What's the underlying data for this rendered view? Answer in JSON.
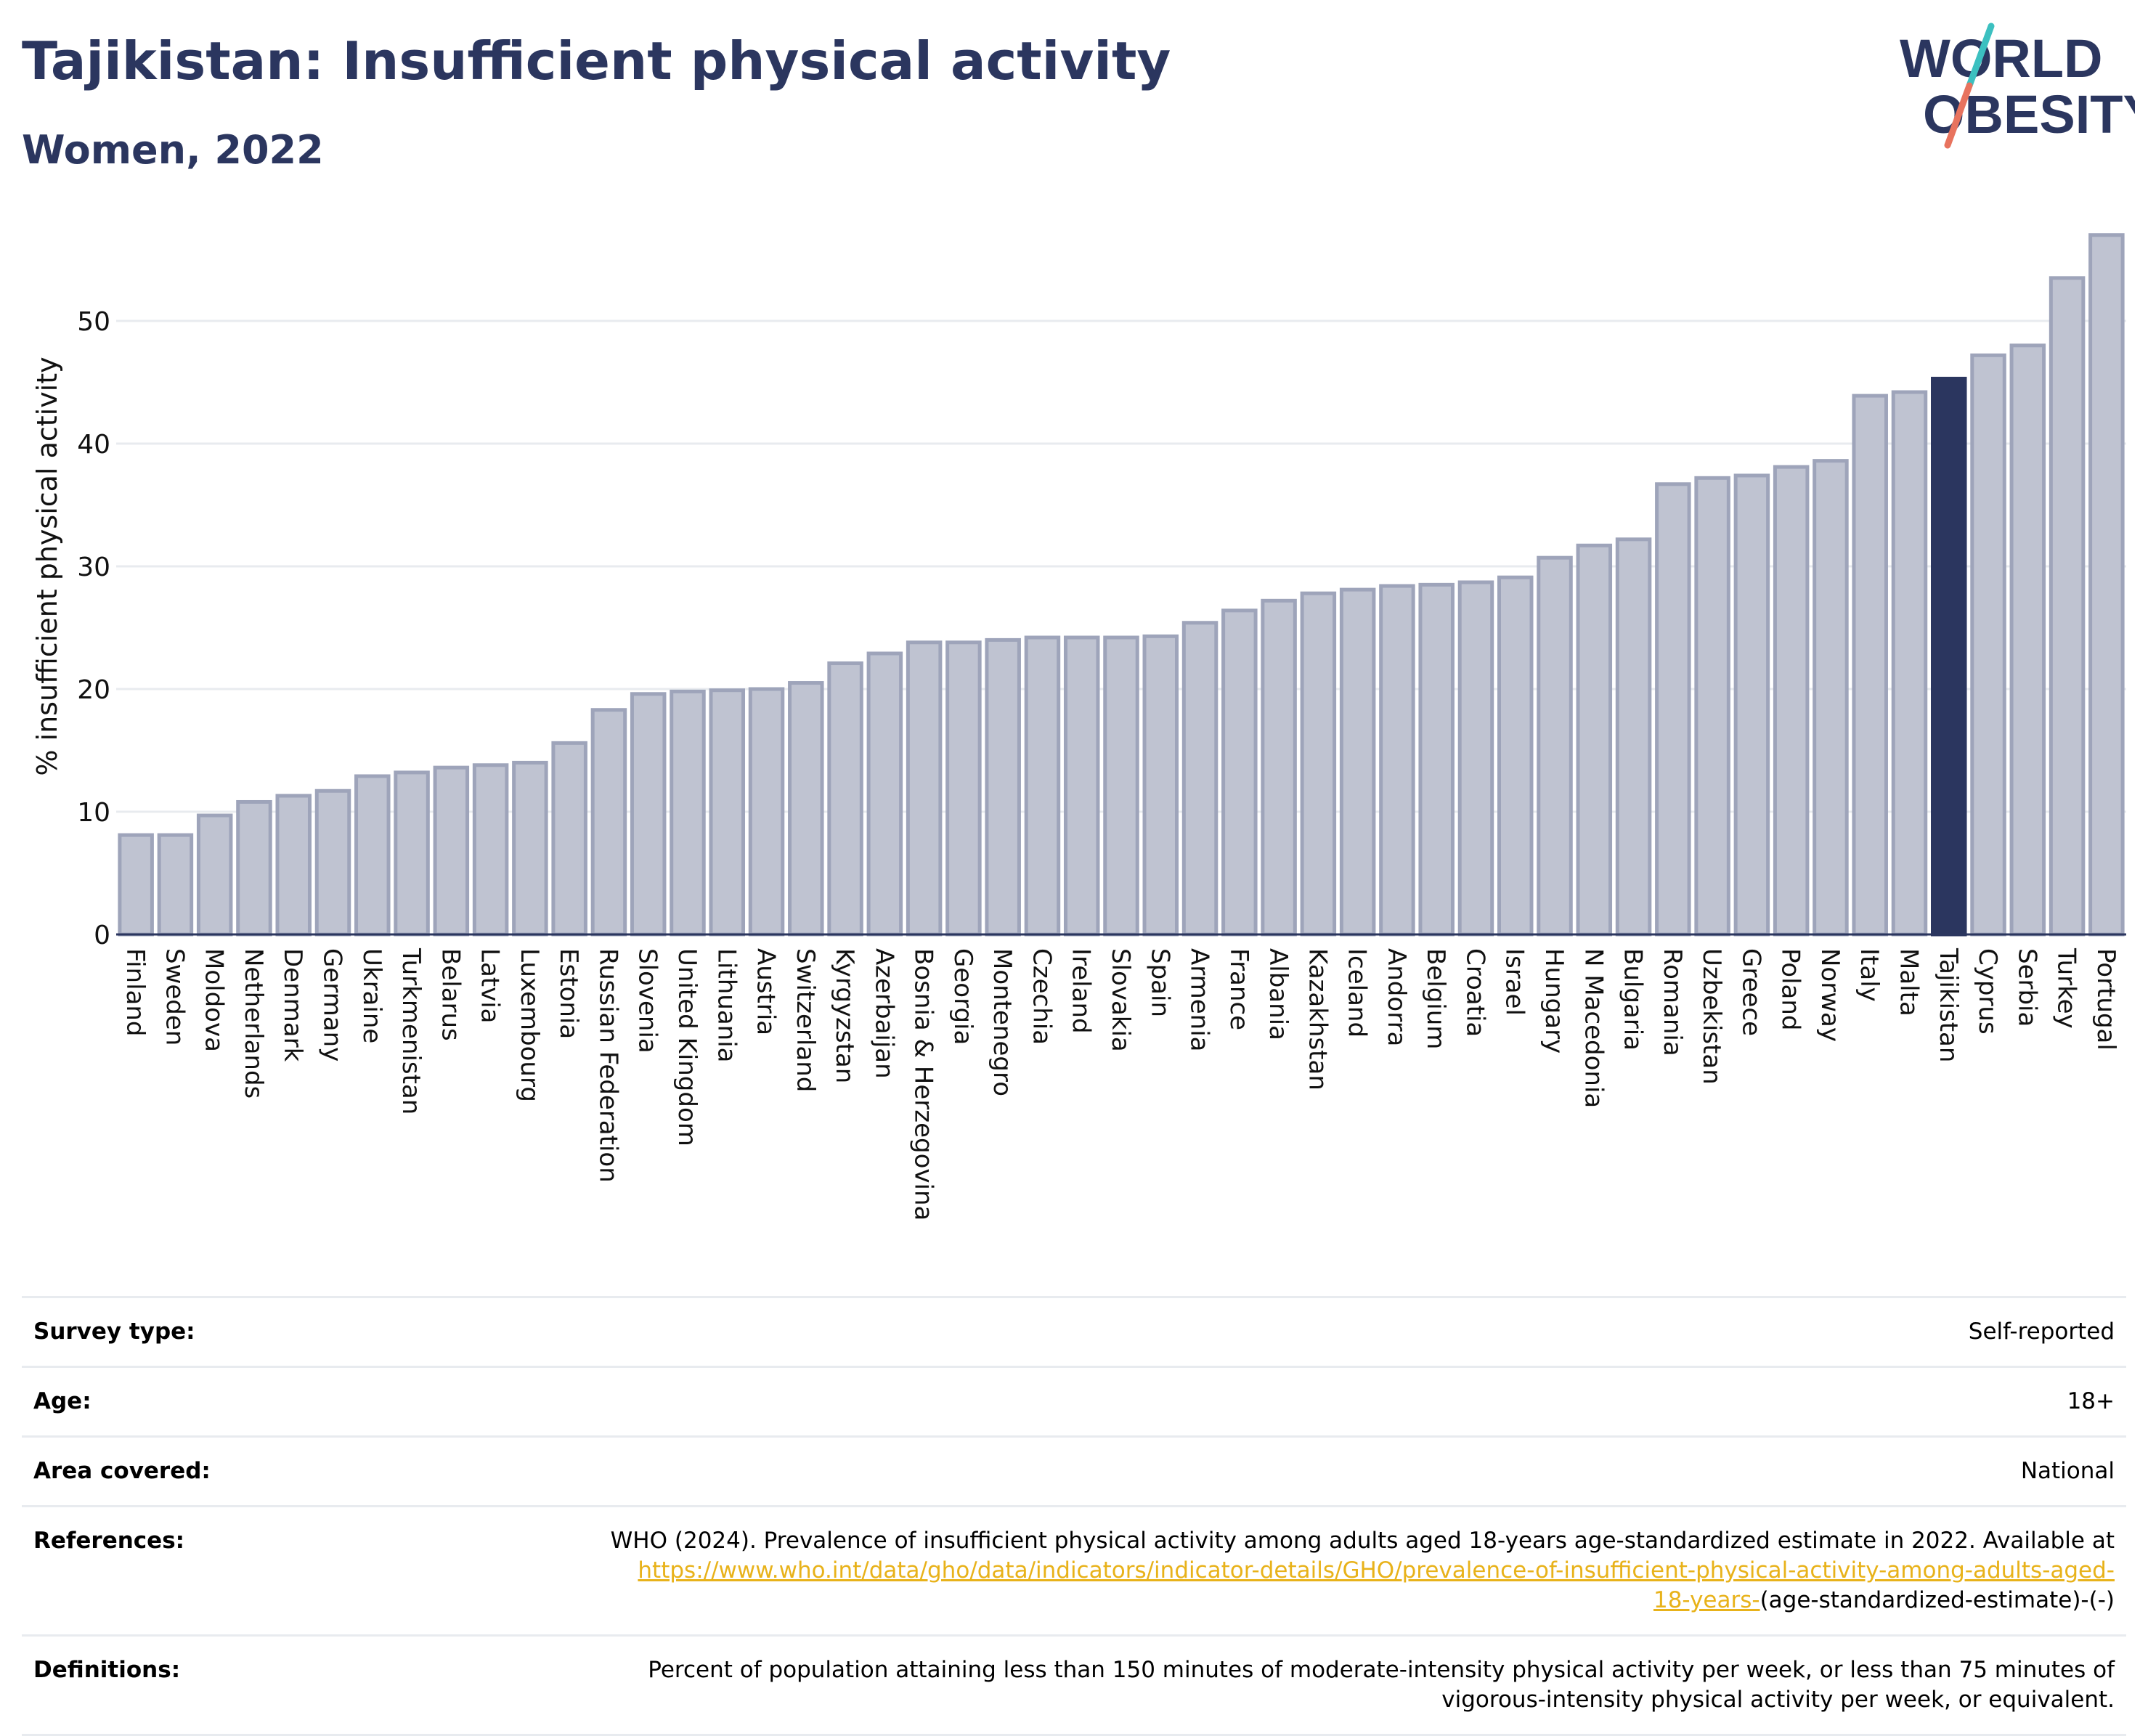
{
  "header": {
    "title": "Tajikistan: Insufficient physical activity",
    "subtitle": "Women, 2022",
    "logo_line1": "WORLD",
    "logo_line2": "OBESITY"
  },
  "colors": {
    "title": "#2b365f",
    "bar_default": "#bfc3d1",
    "bar_edge": "#9ea4ba",
    "bar_highlight": "#2b365f",
    "grid": "#e8ebef",
    "link": "#e8b21a",
    "logo_slash_top": "#3cc0c0",
    "logo_slash_bottom": "#e8735e"
  },
  "chart_data": {
    "type": "bar",
    "title": "Tajikistan: Insufficient physical activity",
    "subtitle": "Women, 2022",
    "ylabel": "% insufficient physical activity",
    "ylim": [
      0,
      58
    ],
    "yticks": [
      0,
      10,
      20,
      30,
      40,
      50
    ],
    "grid": true,
    "highlight": "Tajikistan",
    "categories": [
      "Finland",
      "Sweden",
      "Moldova",
      "Netherlands",
      "Denmark",
      "Germany",
      "Ukraine",
      "Turkmenistan",
      "Belarus",
      "Latvia",
      "Luxembourg",
      "Estonia",
      "Russian Federation",
      "Slovenia",
      "United Kingdom",
      "Lithuania",
      "Austria",
      "Switzerland",
      "Kyrgyzstan",
      "Azerbaijan",
      "Bosnia & Herzegovina",
      "Georgia",
      "Montenegro",
      "Czechia",
      "Ireland",
      "Slovakia",
      "Spain",
      "Armenia",
      "France",
      "Albania",
      "Kazakhstan",
      "Iceland",
      "Andorra",
      "Belgium",
      "Croatia",
      "Israel",
      "Hungary",
      "N Macedonia",
      "Bulgaria",
      "Romania",
      "Uzbekistan",
      "Greece",
      "Poland",
      "Norway",
      "Italy",
      "Malta",
      "Tajikistan",
      "Cyprus",
      "Serbia",
      "Turkey",
      "Portugal"
    ],
    "values": [
      8.1,
      8.1,
      9.7,
      10.8,
      11.3,
      11.7,
      12.9,
      13.2,
      13.6,
      13.8,
      14.0,
      15.6,
      18.3,
      19.6,
      19.8,
      19.9,
      20.0,
      20.5,
      22.1,
      22.9,
      23.8,
      23.8,
      24.0,
      24.2,
      24.2,
      24.2,
      24.3,
      25.4,
      26.4,
      27.2,
      27.8,
      28.1,
      28.4,
      28.5,
      28.7,
      29.1,
      30.7,
      31.7,
      32.2,
      36.7,
      37.2,
      37.4,
      38.1,
      38.6,
      43.9,
      44.2,
      45.3,
      47.2,
      48.0,
      53.5,
      57.0
    ]
  },
  "meta": {
    "survey_type": {
      "label": "Survey type:",
      "value": "Self-reported"
    },
    "age": {
      "label": "Age:",
      "value": "18+"
    },
    "area": {
      "label": "Area covered:",
      "value": "National"
    },
    "references": {
      "label": "References:",
      "text": "WHO (2024). Prevalence of insufficient physical activity among adults aged 18-years age-standardized estimate in 2022. Available at",
      "link_line1": "https://www.who.int/data/gho/data/indicators/indicator-details/GHO/prevalence-of-insufficient-physical-activity-among-adults-aged-",
      "link_line2": "18-years-",
      "suffix": "(age-standardized-estimate)-(-)"
    },
    "definitions": {
      "label": "Definitions:",
      "line1": "Percent of population attaining less than 150 minutes of moderate-intensity physical activity per week, or less than 75 minutes of",
      "line2": "vigorous-intensity physical activity per week, or equivalent."
    }
  }
}
